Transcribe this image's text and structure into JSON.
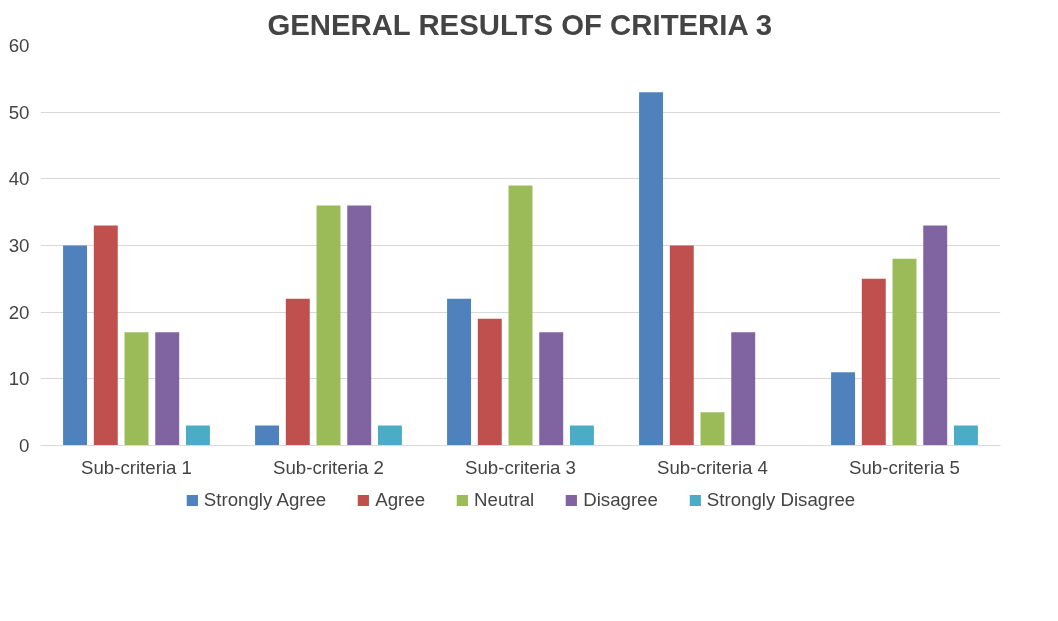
{
  "chart_data": {
    "type": "bar",
    "title": "GENERAL RESULTS OF CRITERIA 3",
    "categories": [
      "Sub-criteria 1",
      "Sub-criteria 2",
      "Sub-criteria 3",
      "Sub-criteria 4",
      "Sub-criteria 5"
    ],
    "series": [
      {
        "name": "Strongly Agree",
        "color": "#4f81bd",
        "values": [
          30,
          3,
          22,
          53,
          11
        ]
      },
      {
        "name": "Agree",
        "color": "#c0504d",
        "values": [
          33,
          22,
          19,
          30,
          25
        ]
      },
      {
        "name": "Neutral",
        "color": "#9bbb59",
        "values": [
          17,
          36,
          39,
          5,
          28
        ]
      },
      {
        "name": "Disagree",
        "color": "#8064a2",
        "values": [
          17,
          36,
          17,
          17,
          33
        ]
      },
      {
        "name": "Strongly Disagree",
        "color": "#4bacc6",
        "values": [
          3,
          3,
          3,
          0,
          3
        ]
      }
    ],
    "ylim": [
      0,
      60
    ],
    "yticks": [
      0,
      10,
      20,
      30,
      40,
      50,
      60
    ],
    "grid": "y",
    "legend": "bottom"
  }
}
